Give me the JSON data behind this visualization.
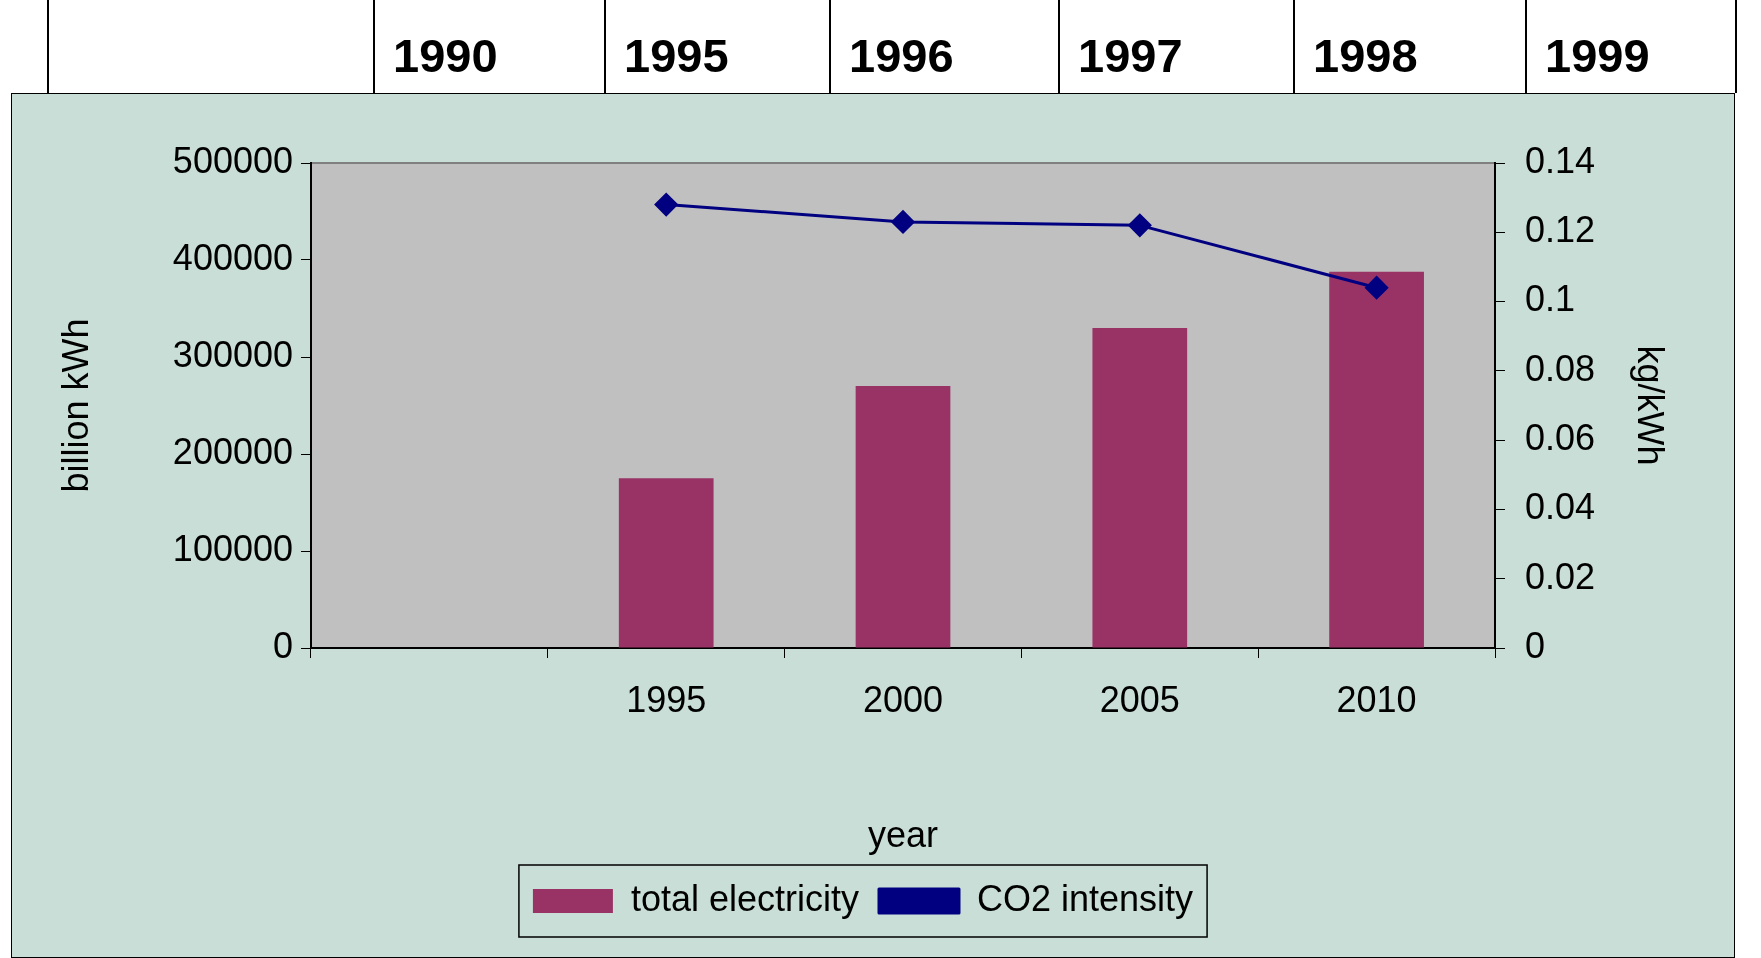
{
  "chart_data": {
    "type": "bar",
    "xlabel": "year",
    "ylabel": "billion kWh",
    "y2label": "kg/kWh",
    "categories": [
      null,
      "1995",
      "2000",
      "2005",
      "2010"
    ],
    "series": [
      {
        "name": "total electricity",
        "color": "#993366",
        "values": [
          null,
          175000,
          270000,
          330000,
          388000
        ]
      },
      {
        "name": "CO2 intensity",
        "type": "line",
        "axis": "y2",
        "color": "#000080",
        "marker": "diamond",
        "values": [
          null,
          0.128,
          0.123,
          0.122,
          0.104
        ]
      }
    ],
    "ylim": [
      0,
      500000
    ],
    "yticks": [
      0,
      100000,
      200000,
      300000,
      400000,
      500000
    ],
    "y2lim": [
      0,
      0.14
    ],
    "y2ticks": [
      0,
      0.02,
      0.04,
      0.06,
      0.08,
      0.1,
      0.12,
      0.14
    ],
    "grid": false,
    "legend": "bottom",
    "annotations": [
      "1990",
      "1995",
      "1996",
      "1997",
      "1998",
      "1999"
    ]
  }
}
